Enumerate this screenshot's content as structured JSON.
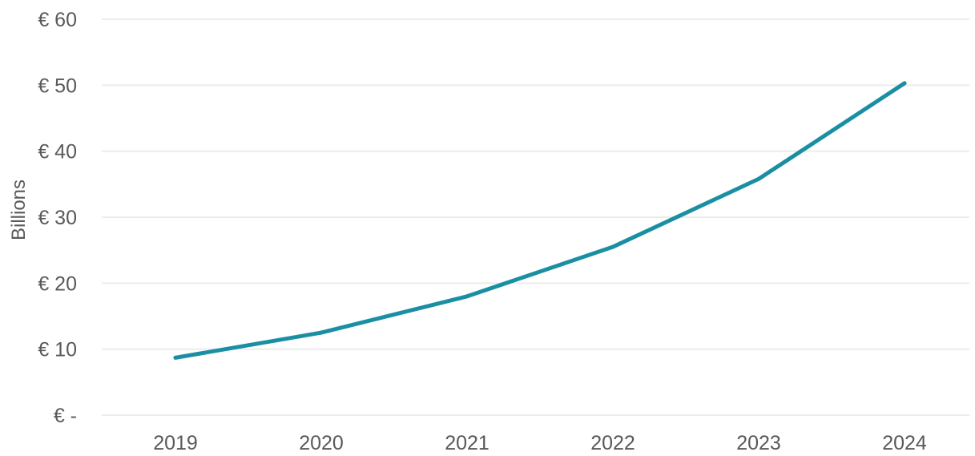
{
  "chart_data": {
    "type": "line",
    "title": "",
    "xlabel": "",
    "ylabel": "Billions",
    "categories": [
      "2019",
      "2020",
      "2021",
      "2022",
      "2023",
      "2024"
    ],
    "series": [
      {
        "values": [
          8.7,
          12.5,
          18.0,
          25.5,
          35.8,
          50.3
        ],
        "color": "#1a8fa3"
      }
    ],
    "ylim": [
      0,
      60
    ],
    "yticks": [
      0,
      10,
      20,
      30,
      40,
      50,
      60
    ],
    "ytick_labels": [
      "€ -",
      "€ 10",
      "€ 20",
      "€ 30",
      "€ 40",
      "€ 50",
      "€ 60"
    ],
    "grid": true,
    "legend": "none",
    "colors": {
      "grid": "#ececec",
      "text": "#595959"
    }
  }
}
